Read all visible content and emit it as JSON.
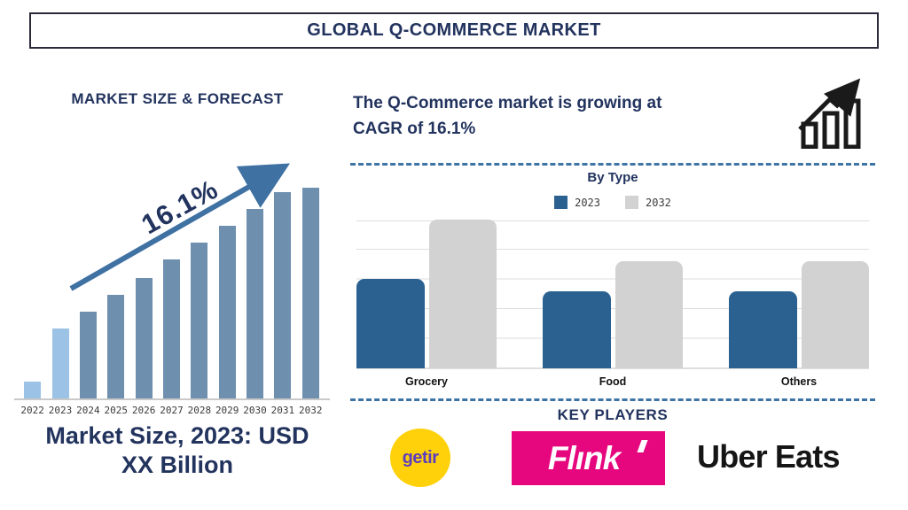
{
  "header": {
    "title": "GLOBAL Q-COMMERCE MARKET"
  },
  "left_panel": {
    "title": "MARKET SIZE & FORECAST",
    "growth_label": "16.1%",
    "caption_lines": [
      "Market Size, 2023: USD",
      "XX Billion"
    ]
  },
  "right_panel": {
    "headline_lines": [
      "The Q-Commerce market is growing at",
      "CAGR of 16.1%"
    ],
    "by_type": {
      "title": "By Type"
    },
    "key_players": {
      "title": "KEY PLAYERS",
      "getir_label": "getir",
      "flink_label": "Flınk",
      "uber_words": [
        "Uber",
        "Eats"
      ]
    }
  },
  "chart_data": [
    {
      "type": "bar",
      "title": "MARKET SIZE & FORECAST",
      "categories": [
        "2022",
        "2023",
        "2024",
        "2025",
        "2026",
        "2027",
        "2028",
        "2029",
        "2030",
        "2031",
        "2032"
      ],
      "values": [
        8,
        33,
        41,
        49,
        57,
        66,
        74,
        82,
        90,
        98,
        100
      ],
      "unit": "relative height; actual figures masked as USD XX Billion",
      "xlabel": "",
      "ylabel": "",
      "ylim": [
        0,
        100
      ],
      "grid": false,
      "highlight_first_n": 2,
      "annotation": "16.1% CAGR arrow rising left-to-right"
    },
    {
      "type": "bar",
      "title": "By Type",
      "categories": [
        "Grocery",
        "Food",
        "Others"
      ],
      "series": [
        {
          "name": "2023",
          "color": "#2a6191",
          "values": [
            60,
            52,
            52
          ]
        },
        {
          "name": "2032",
          "color": "#d2d2d2",
          "values": [
            100,
            72,
            72
          ]
        }
      ],
      "ylim": [
        0,
        100
      ],
      "grid": true,
      "gridline_count": 6,
      "legend_position": "top",
      "unit": "relative height; y-axis unlabeled"
    }
  ],
  "colors": {
    "navy": "#22335e",
    "steel": "#6e8fae",
    "light_blue": "#9cc3e6",
    "arrow_blue": "#3f72a3",
    "bar_blue": "#2a6191",
    "bar_gray": "#d2d2d2",
    "dashed_blue": "#3c74a6",
    "getir_yellow": "#fed10a",
    "getir_purple": "#5d3ebc",
    "flink_pink": "#e6067e",
    "ink_black": "#151515"
  }
}
